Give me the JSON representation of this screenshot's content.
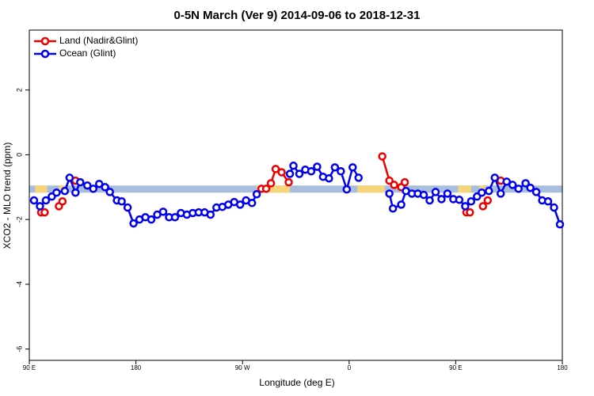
{
  "chart_data": {
    "type": "line",
    "title": "0-5N March (Ver 9)   2014-09-06 to 2018-12-31",
    "xlabel": "Longitude (deg E)",
    "ylabel": "XCO2 - MLO trend (ppm)",
    "xlim": [
      90,
      540
    ],
    "ylim": [
      -6.35,
      3.85
    ],
    "xticks": [
      {
        "value": 90,
        "label": "90 E"
      },
      180,
      {
        "value": 270,
        "label": "90 W"
      },
      {
        "value": 360,
        "label": "0"
      },
      {
        "value": 450,
        "label": "90 E"
      },
      {
        "value": 540,
        "label": "180"
      }
    ],
    "yticks": [
      -6,
      -4,
      -2,
      0,
      2
    ],
    "legend": "top-left",
    "band": {
      "ylim": [
        -1.17,
        -0.95
      ],
      "color": "#a8bedc",
      "highlight_color": "#f7d57a",
      "highlights": [
        [
          95,
          105
        ],
        [
          115,
          120
        ],
        [
          282,
          310
        ],
        [
          367,
          390
        ],
        [
          452,
          463
        ],
        [
          470,
          475
        ]
      ]
    },
    "series": [
      {
        "name": "Land (Nadir&Glint)",
        "color": "#ee0000",
        "x": [
          100,
          103,
          108,
          115,
          118,
          122,
          129,
          200,
          286,
          290,
          294,
          298,
          303,
          309,
          340,
          388,
          394,
          398,
          404,
          407,
          450,
          459,
          462,
          465,
          473,
          477,
          480,
          488
        ],
        "values": [
          -1.78,
          -1.78,
          null,
          -1.59,
          -1.44,
          null,
          -0.8,
          null,
          -1.05,
          -1.05,
          -0.88,
          -0.44,
          -0.54,
          -0.85,
          null,
          -0.05,
          -0.8,
          -0.93,
          -1.0,
          -0.85,
          null,
          -1.78,
          -1.78,
          null,
          -1.59,
          -1.41,
          null,
          -0.8
        ]
      },
      {
        "name": "Ocean (Glint)",
        "color": "#0000ee",
        "x": [
          94,
          99,
          104,
          109,
          113,
          120,
          124,
          129,
          133,
          139,
          144,
          149,
          154,
          158,
          164,
          168,
          173,
          178,
          183,
          188,
          193,
          198,
          203,
          208,
          213,
          218,
          223,
          228,
          233,
          238,
          243,
          248,
          253,
          258,
          263,
          268,
          273,
          278,
          282,
          296,
          310,
          313,
          318,
          323,
          328,
          333,
          338,
          343,
          348,
          353,
          358,
          363,
          368,
          380,
          394,
          397,
          404,
          408,
          413,
          418,
          423,
          428,
          433,
          438,
          443,
          448,
          453,
          458,
          463,
          468,
          472,
          478,
          483,
          488,
          493,
          498,
          503,
          509,
          513,
          518,
          523,
          528,
          533,
          538
        ],
        "values": [
          -1.41,
          -1.59,
          -1.41,
          -1.29,
          -1.17,
          -1.12,
          -0.71,
          -1.17,
          -0.85,
          -0.95,
          -1.05,
          -0.9,
          -1.0,
          -1.15,
          -1.41,
          -1.44,
          -1.63,
          -2.12,
          -2.0,
          -1.93,
          -2.0,
          -1.85,
          -1.76,
          -1.93,
          -1.93,
          -1.8,
          -1.85,
          -1.8,
          -1.78,
          -1.78,
          -1.85,
          -1.63,
          -1.61,
          -1.54,
          -1.46,
          -1.54,
          -1.41,
          -1.49,
          -1.22,
          null,
          -0.59,
          -0.34,
          -0.59,
          -0.46,
          -0.51,
          -0.37,
          -0.68,
          -0.73,
          -0.39,
          -0.51,
          -1.07,
          -0.39,
          -0.71,
          null,
          -1.2,
          -1.66,
          -1.54,
          -1.12,
          -1.2,
          -1.2,
          -1.24,
          -1.41,
          -1.15,
          -1.37,
          -1.2,
          -1.37,
          -1.39,
          -1.59,
          -1.44,
          -1.29,
          -1.17,
          -1.12,
          -0.71,
          -1.2,
          -0.83,
          -0.93,
          -1.05,
          -0.88,
          -1.02,
          -1.15,
          -1.41,
          -1.44,
          -1.63,
          -2.15
        ]
      }
    ]
  }
}
